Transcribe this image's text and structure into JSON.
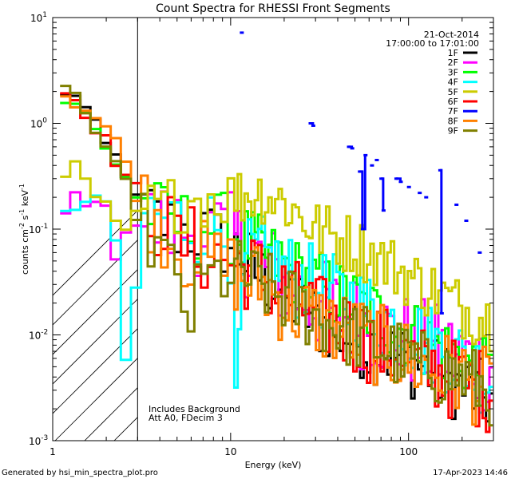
{
  "chart_data": {
    "type": "line",
    "title": "Count Spectra for RHESSI Front Segments",
    "xlabel": "Energy (keV)",
    "ylabel": "counts cm",
    "ylabel_sup1": "-2",
    "ylabel_mid": " s",
    "ylabel_sup2": "-1",
    "ylabel_end": " keV",
    "ylabel_sup3": "-1",
    "x_scale": "log",
    "y_scale": "log",
    "xlim": [
      1,
      300
    ],
    "ylim": [
      0.001,
      10
    ],
    "x_ticks": [
      {
        "value": 1,
        "label": "1"
      },
      {
        "value": 10,
        "label": "10"
      },
      {
        "value": 100,
        "label": "100"
      }
    ],
    "y_ticks": [
      {
        "value": 0.001,
        "base": "10",
        "exp": "-3"
      },
      {
        "value": 0.01,
        "base": "10",
        "exp": "-2"
      },
      {
        "value": 0.1,
        "base": "10",
        "exp": "-1"
      },
      {
        "value": 1,
        "base": "10",
        "exp": "0"
      },
      {
        "value": 10,
        "base": "10",
        "exp": "1"
      }
    ],
    "date": "21-Oct-2014",
    "time_range": "17:00:00 to 17:01:00",
    "hatch_region_max_energy": 3,
    "annotations": [
      "Includes Background",
      "Att A0, FDecim 3"
    ],
    "legend_position": "top-right",
    "series": [
      {
        "name": "1F",
        "color": "#000000",
        "trend": [
          [
            1.1,
            1.6
          ],
          [
            1.3,
            2.1
          ],
          [
            1.6,
            1.2
          ],
          [
            2,
            0.6
          ],
          [
            2.5,
            0.4
          ],
          [
            3,
            0.17
          ],
          [
            4,
            0.12
          ],
          [
            5,
            0.1
          ],
          [
            7,
            0.09
          ],
          [
            10,
            0.07
          ],
          [
            15,
            0.035
          ],
          [
            20,
            0.025
          ],
          [
            30,
            0.014
          ],
          [
            50,
            0.009
          ],
          [
            80,
            0.0065
          ],
          [
            120,
            0.005
          ],
          [
            200,
            0.0032
          ],
          [
            280,
            0.0025
          ]
        ],
        "noise": 0.35
      },
      {
        "name": "2F",
        "color": "#ff00ff",
        "trend": [
          [
            1.1,
            0.1
          ],
          [
            1.3,
            0.2
          ],
          [
            1.6,
            0.15
          ],
          [
            2,
            0.2
          ],
          [
            2.3,
            0.035
          ],
          [
            2.6,
            0.12
          ],
          [
            3,
            0.12
          ],
          [
            4,
            0.11
          ],
          [
            5,
            0.1
          ],
          [
            7,
            0.1
          ],
          [
            10,
            0.08
          ],
          [
            15,
            0.05
          ],
          [
            20,
            0.03
          ],
          [
            30,
            0.02
          ],
          [
            50,
            0.014
          ],
          [
            80,
            0.01
          ],
          [
            120,
            0.008
          ],
          [
            200,
            0.006
          ],
          [
            280,
            0.005
          ]
        ],
        "noise": 0.45
      },
      {
        "name": "3F",
        "color": "#00ff00",
        "trend": [
          [
            1.1,
            1.5
          ],
          [
            1.3,
            1.7
          ],
          [
            1.6,
            1.1
          ],
          [
            2,
            0.55
          ],
          [
            2.5,
            0.35
          ],
          [
            3,
            0.19
          ],
          [
            4,
            0.13
          ],
          [
            5,
            0.11
          ],
          [
            7,
            0.11
          ],
          [
            10,
            0.1
          ],
          [
            15,
            0.06
          ],
          [
            20,
            0.045
          ],
          [
            30,
            0.03
          ],
          [
            50,
            0.02
          ],
          [
            80,
            0.013
          ],
          [
            120,
            0.009
          ],
          [
            200,
            0.006
          ],
          [
            280,
            0.004
          ]
        ],
        "noise": 0.35
      },
      {
        "name": "4F",
        "color": "#00ffff",
        "trend": [
          [
            1.1,
            0.16
          ],
          [
            1.3,
            0.17
          ],
          [
            1.6,
            0.17
          ],
          [
            2,
            0.19
          ],
          [
            2.3,
            0.07
          ],
          [
            2.6,
            0.004
          ],
          [
            2.9,
            0.02
          ],
          [
            3.2,
            0.15
          ],
          [
            4,
            0.13
          ],
          [
            5,
            0.12
          ],
          [
            7,
            0.11
          ],
          [
            10,
            0.09
          ],
          [
            11,
            0.0025
          ],
          [
            12,
            0.05
          ],
          [
            15,
            0.055
          ],
          [
            20,
            0.04
          ],
          [
            30,
            0.028
          ],
          [
            50,
            0.02
          ],
          [
            80,
            0.013
          ],
          [
            120,
            0.009
          ],
          [
            200,
            0.006
          ],
          [
            280,
            0.004
          ]
        ],
        "noise": 0.4
      },
      {
        "name": "5F",
        "color": "#cccc00",
        "trend": [
          [
            1.1,
            0.2
          ],
          [
            1.3,
            0.45
          ],
          [
            1.6,
            0.24
          ],
          [
            2,
            0.16
          ],
          [
            2.5,
            0.08
          ],
          [
            3,
            0.15
          ],
          [
            4,
            0.15
          ],
          [
            5,
            0.18
          ],
          [
            7,
            0.2
          ],
          [
            10,
            0.2
          ],
          [
            15,
            0.22
          ],
          [
            20,
            0.18
          ],
          [
            30,
            0.1
          ],
          [
            50,
            0.07
          ],
          [
            80,
            0.045
          ],
          [
            120,
            0.03
          ],
          [
            200,
            0.018
          ],
          [
            280,
            0.014
          ]
        ],
        "noise": 0.3
      },
      {
        "name": "6F",
        "color": "#ff0000",
        "trend": [
          [
            1.1,
            2.1
          ],
          [
            1.3,
            1.8
          ],
          [
            1.6,
            1.2
          ],
          [
            2,
            0.65
          ],
          [
            2.5,
            0.35
          ],
          [
            3,
            0.22
          ],
          [
            4,
            0.12
          ],
          [
            5,
            0.08
          ],
          [
            7,
            0.06
          ],
          [
            10,
            0.05
          ],
          [
            15,
            0.035
          ],
          [
            20,
            0.025
          ],
          [
            30,
            0.016
          ],
          [
            50,
            0.01
          ],
          [
            80,
            0.007
          ],
          [
            120,
            0.005
          ],
          [
            200,
            0.0035
          ],
          [
            280,
            0.003
          ]
        ],
        "noise": 0.4
      },
      {
        "name": "7F",
        "color": "#0000ff",
        "points": [
          [
            11.5,
            7.2
          ],
          [
            28,
            1.0
          ],
          [
            29,
            0.95
          ],
          [
            46,
            0.6
          ],
          [
            48,
            0.58
          ],
          [
            53,
            0.35
          ],
          [
            55,
            0.1
          ],
          [
            57,
            0.5
          ],
          [
            62,
            0.4
          ],
          [
            66,
            0.45
          ],
          [
            70,
            0.3
          ],
          [
            72,
            0.15
          ],
          [
            85,
            0.3
          ],
          [
            90,
            0.28
          ],
          [
            100,
            0.25
          ],
          [
            115,
            0.22
          ],
          [
            125,
            0.2
          ],
          [
            150,
            0.36
          ],
          [
            153,
            0.016
          ],
          [
            185,
            0.17
          ],
          [
            210,
            0.12
          ],
          [
            250,
            0.06
          ]
        ],
        "noise": 0
      },
      {
        "name": "8F",
        "color": "#ff8000",
        "trend": [
          [
            1.1,
            2.0
          ],
          [
            1.3,
            1.7
          ],
          [
            1.6,
            1.3
          ],
          [
            2,
            0.9
          ],
          [
            2.5,
            0.5
          ],
          [
            3,
            0.2
          ],
          [
            4,
            0.12
          ],
          [
            5,
            0.07
          ],
          [
            7,
            0.05
          ],
          [
            10,
            0.04
          ],
          [
            15,
            0.03
          ],
          [
            20,
            0.02
          ],
          [
            30,
            0.014
          ],
          [
            50,
            0.01
          ],
          [
            80,
            0.007
          ],
          [
            120,
            0.005
          ],
          [
            200,
            0.004
          ],
          [
            280,
            0.003
          ]
        ],
        "noise": 0.4
      },
      {
        "name": "9F",
        "color": "#808000",
        "trend": [
          [
            1.1,
            2.9
          ],
          [
            1.3,
            2.0
          ],
          [
            1.6,
            1.1
          ],
          [
            2,
            0.5
          ],
          [
            2.5,
            0.3
          ],
          [
            3,
            0.13
          ],
          [
            4,
            0.06
          ],
          [
            5,
            0.03
          ],
          [
            6,
            0.015
          ],
          [
            7,
            0.03
          ],
          [
            10,
            0.04
          ],
          [
            15,
            0.03
          ],
          [
            20,
            0.022
          ],
          [
            30,
            0.015
          ],
          [
            50,
            0.01
          ],
          [
            80,
            0.007
          ],
          [
            120,
            0.005
          ],
          [
            200,
            0.004
          ],
          [
            280,
            0.003
          ]
        ],
        "noise": 0.35
      }
    ]
  },
  "footer": {
    "left": "Generated by hsi_min_spectra_plot.pro",
    "right": "17-Apr-2023 14:46"
  }
}
